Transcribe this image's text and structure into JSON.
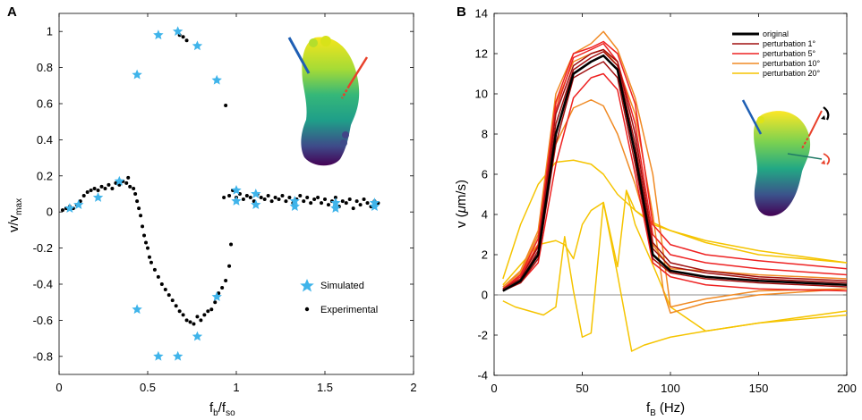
{
  "chart_data": [
    {
      "type": "scatter",
      "panel": "A",
      "xlabel": "f",
      "xlabel_sub_1": "b",
      "xlabel_mid": "/f",
      "xlabel_sub_2": "so",
      "ylabel": "v/v",
      "ylabel_sub": "max",
      "xlim": [
        0,
        2
      ],
      "ylim": [
        -0.9,
        1.1
      ],
      "xticks": [
        0,
        0.5,
        1,
        1.5,
        2
      ],
      "xtick_labels": [
        "0",
        "0.5",
        "1",
        "1.5",
        "2"
      ],
      "yticks": [
        -0.8,
        -0.6,
        -0.4,
        -0.2,
        0,
        0.2,
        0.4,
        0.6,
        0.8,
        1
      ],
      "ytick_labels": [
        "-0.8",
        "-0.6",
        "-0.4",
        "-0.2",
        "0",
        "0.2",
        "0.4",
        "0.6",
        "0.8",
        "1"
      ],
      "legend": [
        {
          "label": "Simulated",
          "marker": "star",
          "color": "#3fb4ea"
        },
        {
          "label": "Experimental",
          "marker": "dot",
          "color": "#000000"
        }
      ],
      "series": [
        {
          "name": "Experimental",
          "points": [
            [
              0.02,
              0.01
            ],
            [
              0.04,
              0.02
            ],
            [
              0.06,
              0.03
            ],
            [
              0.08,
              0.02
            ],
            [
              0.1,
              0.04
            ],
            [
              0.12,
              0.06
            ],
            [
              0.14,
              0.09
            ],
            [
              0.16,
              0.11
            ],
            [
              0.18,
              0.12
            ],
            [
              0.2,
              0.13
            ],
            [
              0.22,
              0.12
            ],
            [
              0.24,
              0.14
            ],
            [
              0.26,
              0.13
            ],
            [
              0.28,
              0.15
            ],
            [
              0.3,
              0.13
            ],
            [
              0.32,
              0.16
            ],
            [
              0.34,
              0.15
            ],
            [
              0.36,
              0.17
            ],
            [
              0.38,
              0.16
            ],
            [
              0.39,
              0.19
            ],
            [
              0.4,
              0.14
            ],
            [
              0.42,
              0.13
            ],
            [
              0.43,
              0.1
            ],
            [
              0.44,
              0.06
            ],
            [
              0.45,
              0.02
            ],
            [
              0.46,
              -0.02
            ],
            [
              0.47,
              -0.08
            ],
            [
              0.48,
              -0.13
            ],
            [
              0.49,
              -0.17
            ],
            [
              0.5,
              -0.2
            ],
            [
              0.51,
              -0.25
            ],
            [
              0.52,
              -0.28
            ],
            [
              0.54,
              -0.32
            ],
            [
              0.56,
              -0.36
            ],
            [
              0.58,
              -0.4
            ],
            [
              0.6,
              -0.43
            ],
            [
              0.62,
              -0.46
            ],
            [
              0.64,
              -0.49
            ],
            [
              0.66,
              -0.52
            ],
            [
              0.68,
              -0.55
            ],
            [
              0.7,
              -0.57
            ],
            [
              0.72,
              -0.6
            ],
            [
              0.74,
              -0.61
            ],
            [
              0.76,
              -0.62
            ],
            [
              0.78,
              -0.58
            ],
            [
              0.8,
              -0.6
            ],
            [
              0.82,
              -0.57
            ],
            [
              0.84,
              -0.55
            ],
            [
              0.86,
              -0.54
            ],
            [
              0.88,
              -0.5
            ],
            [
              0.9,
              -0.45
            ],
            [
              0.92,
              -0.42
            ],
            [
              0.94,
              -0.38
            ],
            [
              0.96,
              -0.3
            ],
            [
              0.97,
              -0.18
            ],
            [
              0.68,
              0.98
            ],
            [
              0.7,
              0.97
            ],
            [
              0.72,
              0.95
            ],
            [
              0.94,
              0.59
            ],
            [
              0.93,
              0.08
            ],
            [
              0.96,
              0.09
            ],
            [
              0.98,
              0.12
            ],
            [
              1.0,
              0.08
            ],
            [
              1.02,
              0.1
            ],
            [
              1.04,
              0.07
            ],
            [
              1.06,
              0.09
            ],
            [
              1.08,
              0.08
            ],
            [
              1.1,
              0.06
            ],
            [
              1.12,
              0.1
            ],
            [
              1.14,
              0.08
            ],
            [
              1.16,
              0.07
            ],
            [
              1.18,
              0.09
            ],
            [
              1.2,
              0.06
            ],
            [
              1.22,
              0.08
            ],
            [
              1.24,
              0.07
            ],
            [
              1.26,
              0.09
            ],
            [
              1.28,
              0.06
            ],
            [
              1.3,
              0.08
            ],
            [
              1.32,
              0.05
            ],
            [
              1.34,
              0.07
            ],
            [
              1.36,
              0.09
            ],
            [
              1.38,
              0.06
            ],
            [
              1.4,
              0.08
            ],
            [
              1.42,
              0.05
            ],
            [
              1.44,
              0.07
            ],
            [
              1.46,
              0.08
            ],
            [
              1.48,
              0.05
            ],
            [
              1.5,
              0.07
            ],
            [
              1.52,
              0.04
            ],
            [
              1.54,
              0.06
            ],
            [
              1.56,
              0.08
            ],
            [
              1.58,
              0.03
            ],
            [
              1.6,
              0.06
            ],
            [
              1.62,
              0.05
            ],
            [
              1.64,
              0.07
            ],
            [
              1.66,
              0.02
            ],
            [
              1.68,
              0.06
            ],
            [
              1.7,
              0.04
            ],
            [
              1.72,
              0.07
            ],
            [
              1.74,
              0.05
            ],
            [
              1.76,
              0.03
            ],
            [
              1.78,
              0.06
            ],
            [
              1.8,
              0.05
            ]
          ]
        },
        {
          "name": "Simulated",
          "points": [
            [
              0.06,
              0.02
            ],
            [
              0.11,
              0.04
            ],
            [
              0.22,
              0.08
            ],
            [
              0.34,
              0.17
            ],
            [
              0.44,
              0.76
            ],
            [
              0.56,
              0.98
            ],
            [
              0.67,
              1.0
            ],
            [
              0.78,
              0.92
            ],
            [
              0.89,
              0.73
            ],
            [
              0.44,
              -0.54
            ],
            [
              0.56,
              -0.8
            ],
            [
              0.67,
              -0.8
            ],
            [
              0.78,
              -0.69
            ],
            [
              0.89,
              -0.47
            ],
            [
              1.0,
              0.12
            ],
            [
              1.0,
              0.06
            ],
            [
              1.11,
              0.1
            ],
            [
              1.11,
              0.04
            ],
            [
              1.33,
              0.06
            ],
            [
              1.33,
              0.03
            ],
            [
              1.56,
              0.05
            ],
            [
              1.56,
              0.02
            ],
            [
              1.78,
              0.05
            ],
            [
              1.78,
              0.03
            ]
          ]
        }
      ]
    },
    {
      "type": "line",
      "panel": "B",
      "xlabel": "f",
      "xlabel_sub": "B",
      "xlabel_unit": "(Hz)",
      "ylabel": "v (",
      "ylabel_mu": "μ",
      "ylabel_unit": "m/s)",
      "xlim": [
        0,
        200
      ],
      "ylim": [
        -4,
        14
      ],
      "xticks": [
        0,
        50,
        100,
        150,
        200
      ],
      "xtick_labels": [
        "0",
        "50",
        "100",
        "150",
        "200"
      ],
      "yticks": [
        -4,
        -2,
        0,
        2,
        4,
        6,
        8,
        10,
        12,
        14
      ],
      "ytick_labels": [
        "-4",
        "-2",
        "0",
        "2",
        "4",
        "6",
        "8",
        "10",
        "12",
        "14"
      ],
      "legend": [
        {
          "label": "original",
          "color": "#000000"
        },
        {
          "label": "perturbation 1°",
          "color": "#a01010"
        },
        {
          "label": "perturbation 5°",
          "color": "#ee2222"
        },
        {
          "label": "perturbation 10°",
          "color": "#f08a24"
        },
        {
          "label": "perturbation 20°",
          "color": "#f5c400"
        }
      ],
      "series": [
        {
          "name": "original",
          "group": "original",
          "x": [
            5,
            15,
            25,
            35,
            45,
            55,
            62,
            70,
            80,
            90,
            100,
            120,
            150,
            200
          ],
          "y": [
            0.2,
            0.7,
            2,
            8,
            11,
            11.6,
            11.9,
            11.2,
            7,
            2,
            1.2,
            0.9,
            0.7,
            0.5
          ]
        },
        {
          "name": "p1-a",
          "group": "perturbation 1°",
          "x": [
            5,
            15,
            25,
            35,
            45,
            55,
            62,
            70,
            80,
            90,
            100,
            120,
            150,
            200
          ],
          "y": [
            0.2,
            0.7,
            2.2,
            8.5,
            11.2,
            11.8,
            12.1,
            11.4,
            7.5,
            2.3,
            1.4,
            1.1,
            0.8,
            0.6
          ]
        },
        {
          "name": "p1-b",
          "group": "perturbation 1°",
          "x": [
            5,
            15,
            25,
            35,
            45,
            55,
            62,
            70,
            80,
            90,
            100,
            120,
            150,
            200
          ],
          "y": [
            0.2,
            0.6,
            1.8,
            7.5,
            10.8,
            11.3,
            11.6,
            10.8,
            6.5,
            1.8,
            1.1,
            0.8,
            0.6,
            0.4
          ]
        },
        {
          "name": "p1-c",
          "group": "perturbation 1°",
          "x": [
            5,
            15,
            25,
            35,
            45,
            55,
            62,
            70,
            80,
            90,
            100,
            120,
            150,
            200
          ],
          "y": [
            0.3,
            0.8,
            2.4,
            9,
            11.4,
            12,
            12.2,
            11.6,
            8,
            2.6,
            1.6,
            1.2,
            0.9,
            0.7
          ]
        },
        {
          "name": "p5-a",
          "group": "perturbation 5°",
          "x": [
            5,
            15,
            25,
            35,
            45,
            55,
            62,
            70,
            80,
            90,
            100,
            120,
            150,
            200
          ],
          "y": [
            0.3,
            0.9,
            2.5,
            9.2,
            11.8,
            12.2,
            12.5,
            11.6,
            8.5,
            3,
            2,
            1.6,
            1.3,
            1
          ]
        },
        {
          "name": "p5-b",
          "group": "perturbation 5°",
          "x": [
            5,
            15,
            25,
            35,
            45,
            55,
            62,
            70,
            80,
            90,
            100,
            120,
            150,
            200
          ],
          "y": [
            0.2,
            0.6,
            1.6,
            6.5,
            9.8,
            10.8,
            11,
            10.2,
            6,
            1.6,
            0.9,
            0.5,
            0.3,
            0.2
          ]
        },
        {
          "name": "p5-c",
          "group": "perturbation 5°",
          "x": [
            5,
            15,
            25,
            35,
            45,
            55,
            62,
            70,
            80,
            90,
            100,
            120,
            150,
            200
          ],
          "y": [
            0.3,
            1,
            2.8,
            9.6,
            12,
            12.3,
            12.6,
            12,
            9.5,
            3.5,
            2.5,
            2,
            1.7,
            1.3
          ]
        },
        {
          "name": "p10-a",
          "group": "perturbation 10°",
          "x": [
            5,
            15,
            25,
            35,
            45,
            55,
            62,
            70,
            80,
            90,
            100,
            120,
            150,
            200
          ],
          "y": [
            0.4,
            1.2,
            3.2,
            10,
            12,
            12.5,
            13.1,
            12.2,
            9.8,
            6,
            -0.6,
            -0.2,
            0.2,
            0.3
          ]
        },
        {
          "name": "p10-b",
          "group": "perturbation 10°",
          "x": [
            5,
            15,
            25,
            35,
            45,
            55,
            62,
            70,
            80,
            90,
            100,
            120,
            150,
            200
          ],
          "y": [
            0.3,
            1,
            2.5,
            7.5,
            9.3,
            9.7,
            9.4,
            8,
            5.5,
            2.5,
            1.3,
            1.2,
            1,
            0.8
          ]
        },
        {
          "name": "p10-c",
          "group": "perturbation 10°",
          "x": [
            5,
            15,
            25,
            35,
            45,
            55,
            62,
            70,
            80,
            90,
            96,
            100,
            120,
            150,
            200
          ],
          "y": [
            0.4,
            1.1,
            3,
            9.5,
            11.6,
            12,
            12.2,
            11.4,
            9,
            4,
            0.2,
            -0.9,
            -0.4,
            0,
            0.3
          ]
        },
        {
          "name": "p20-a",
          "group": "perturbation 20°",
          "x": [
            5,
            15,
            25,
            35,
            45,
            55,
            62,
            70,
            80,
            90,
            100,
            120,
            150,
            200
          ],
          "y": [
            0.8,
            3.5,
            5.5,
            6.6,
            6.7,
            6.5,
            6,
            5,
            4.2,
            3.5,
            3.2,
            2.7,
            2.2,
            1.6
          ]
        },
        {
          "name": "p20-b",
          "group": "perturbation 20°",
          "x": [
            5,
            12,
            20,
            28,
            35,
            40,
            45,
            50,
            55,
            62,
            70,
            78,
            85,
            100,
            120,
            150,
            200
          ],
          "y": [
            -0.3,
            -0.6,
            -0.8,
            -1,
            -0.6,
            2.9,
            0.2,
            -2.1,
            -1.9,
            4.6,
            1,
            -2.8,
            -2.5,
            -2.1,
            -1.8,
            -1.4,
            -1
          ]
        },
        {
          "name": "p20-c",
          "group": "perturbation 20°",
          "x": [
            5,
            15,
            25,
            35,
            40,
            45,
            50,
            55,
            62,
            70,
            75,
            80,
            90,
            100,
            110,
            120
          ],
          "y": [
            0.5,
            1.5,
            2.5,
            2.7,
            2.5,
            1.8,
            3.5,
            4.2,
            4.6,
            1.4,
            5.2,
            3.5,
            1.5,
            -0.6,
            -1.2,
            -1.8
          ]
        },
        {
          "name": "p20-d",
          "group": "perturbation 20°",
          "x": [
            75,
            80,
            90,
            100,
            120,
            150,
            200
          ],
          "y": [
            5.2,
            4.2,
            3.6,
            3.2,
            2.6,
            2,
            1.6
          ]
        },
        {
          "name": "p20-e",
          "group": "perturbation 20°",
          "x": [
            120,
            150,
            200
          ],
          "y": [
            -1.8,
            -1.4,
            -0.8
          ]
        }
      ]
    }
  ]
}
